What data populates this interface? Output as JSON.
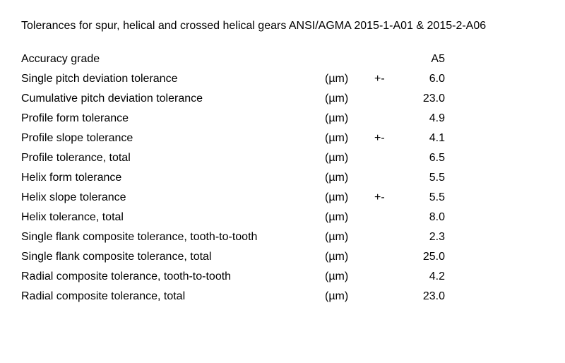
{
  "title": "Tolerances for spur, helical and crossed helical gears ANSI/AGMA 2015-1-A01 & 2015-2-A06",
  "header": {
    "grade": "A5"
  },
  "unit_label": "(µm)",
  "plus_minus": "+-",
  "text_color": "#000000",
  "background_color": "#ffffff",
  "font_size_pt": 12,
  "rows": [
    {
      "label": "Accuracy grade",
      "unit": "",
      "pm": "",
      "value": "A5"
    },
    {
      "label": "Single pitch deviation tolerance",
      "unit": "(µm)",
      "pm": "+-",
      "value": "6.0"
    },
    {
      "label": "Cumulative pitch deviation tolerance",
      "unit": "(µm)",
      "pm": "",
      "value": "23.0"
    },
    {
      "label": "Profile form tolerance",
      "unit": "(µm)",
      "pm": "",
      "value": "4.9"
    },
    {
      "label": "Profile slope tolerance",
      "unit": "(µm)",
      "pm": "+-",
      "value": "4.1"
    },
    {
      "label": "Profile tolerance, total",
      "unit": "(µm)",
      "pm": "",
      "value": "6.5"
    },
    {
      "label": "Helix form tolerance",
      "unit": "(µm)",
      "pm": "",
      "value": "5.5"
    },
    {
      "label": "Helix slope tolerance",
      "unit": "(µm)",
      "pm": "+-",
      "value": "5.5"
    },
    {
      "label": "Helix tolerance, total",
      "unit": "(µm)",
      "pm": "",
      "value": "8.0"
    },
    {
      "label": "Single flank composite tolerance, tooth-to-tooth",
      "unit": "(µm)",
      "pm": "",
      "value": "2.3"
    },
    {
      "label": "Single flank composite tolerance, total",
      "unit": "(µm)",
      "pm": "",
      "value": "25.0"
    },
    {
      "label": "Radial composite tolerance, tooth-to-tooth",
      "unit": "(µm)",
      "pm": "",
      "value": "4.2"
    },
    {
      "label": "Radial composite tolerance, total",
      "unit": "(µm)",
      "pm": "",
      "value": "23.0"
    }
  ]
}
